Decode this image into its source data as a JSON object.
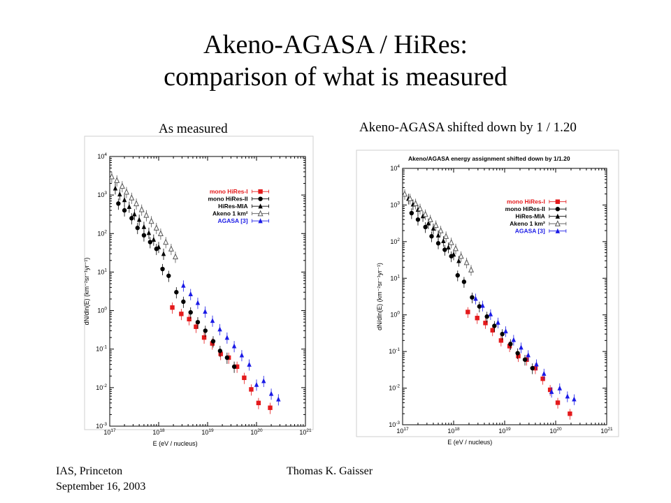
{
  "slide": {
    "title_line1": "Akeno-AGASA / HiRes:",
    "title_line2": "comparison of what is measured",
    "left_caption": "As measured",
    "right_caption": "Akeno-AGASA shifted down by 1 / 1.20",
    "footer_left_line1": "IAS, Princeton",
    "footer_left_line2": "September 16, 2003",
    "footer_author": "Thomas K. Gaisser"
  },
  "chart_data": [
    {
      "type": "scatter",
      "title": "",
      "xlabel": "E   (eV / nucleus)",
      "ylabel": "dN/dln(E)  (km⁻²sr⁻¹yr⁻¹)",
      "x_scale": "log",
      "y_scale": "log",
      "xlim": [
        1e+17,
        1e+21
      ],
      "ylim": [
        0.001,
        10000
      ],
      "x_ticks": [
        "10^17",
        "10^18",
        "10^19",
        "10^20",
        "10^21"
      ],
      "y_ticks": [
        "10^-3",
        "10^-2",
        "10^-1",
        "10^0",
        "10^1",
        "10^2",
        "10^3",
        "10^4"
      ],
      "legend_position": "top-right",
      "series": [
        {
          "name": "mono HiRes-I",
          "color": "#e41a1c",
          "marker": "square",
          "points": [
            [
              1.9e+18,
              1.2
            ],
            [
              2.9e+18,
              0.82
            ],
            [
              4.2e+18,
              0.6
            ],
            [
              5.8e+18,
              0.38
            ],
            [
              8.5e+18,
              0.2
            ],
            [
              1.25e+19,
              0.14
            ],
            [
              1.85e+19,
              0.075
            ],
            [
              2.7e+19,
              0.06
            ],
            [
              4e+19,
              0.035
            ],
            [
              5.6e+19,
              0.018
            ],
            [
              7.8e+19,
              0.009
            ],
            [
              1.1e+20,
              0.004
            ],
            [
              1.9e+20,
              0.003
            ]
          ]
        },
        {
          "name": "mono HiRes-II",
          "color": "#000000",
          "marker": "circle",
          "points": [
            [
              1.5e+17,
              600
            ],
            [
              2e+17,
              400
            ],
            [
              2.8e+17,
              250
            ],
            [
              3.7e+17,
              140
            ],
            [
              5e+17,
              90
            ],
            [
              6.7e+17,
              60
            ],
            [
              9e+17,
              40
            ],
            [
              1.2e+18,
              12
            ],
            [
              1.6e+18,
              8
            ],
            [
              2.3e+18,
              3.0
            ],
            [
              3.2e+18,
              1.7
            ],
            [
              4.5e+18,
              0.9
            ],
            [
              6.3e+18,
              0.5
            ],
            [
              9e+18,
              0.3
            ],
            [
              1.3e+19,
              0.16
            ],
            [
              1.8e+19,
              0.09
            ],
            [
              2.5e+19,
              0.06
            ],
            [
              3.5e+19,
              0.035
            ]
          ]
        },
        {
          "name": "HiRes-MIA",
          "color": "#000000",
          "marker": "triangle",
          "points": [
            [
              1.3e+17,
              1500
            ],
            [
              1.6e+17,
              1050
            ],
            [
              2e+17,
              750
            ],
            [
              2.5e+17,
              500
            ],
            [
              3.2e+17,
              320
            ],
            [
              4e+17,
              230
            ],
            [
              5e+17,
              150
            ],
            [
              6.3e+17,
              105
            ],
            [
              7.9e+17,
              70
            ],
            [
              1e+18,
              45
            ],
            [
              1.26e+18,
              30
            ]
          ]
        },
        {
          "name": "Akeno 1 km²",
          "color": "#555555",
          "marker": "triangle-open",
          "points": [
            [
              1.1e+17,
              3000
            ],
            [
              1.4e+17,
              2400
            ],
            [
              1.8e+17,
              1700
            ],
            [
              2.2e+17,
              1200
            ],
            [
              2.8e+17,
              850
            ],
            [
              3.5e+17,
              600
            ],
            [
              4.5e+17,
              420
            ],
            [
              5.6e+17,
              300
            ],
            [
              7.1e+17,
              210
            ],
            [
              9e+17,
              140
            ],
            [
              1.1e+18,
              100
            ],
            [
              1.4e+18,
              60
            ],
            [
              1.8e+18,
              40
            ],
            [
              2.2e+18,
              25
            ]
          ]
        },
        {
          "name": "AGASA [3]",
          "color": "#1a1ae6",
          "marker": "triangle",
          "points": [
            [
              3.2e+18,
              4.5
            ],
            [
              4.5e+18,
              2.7
            ],
            [
              6.3e+18,
              1.6
            ],
            [
              8.9e+18,
              0.95
            ],
            [
              1.26e+19,
              0.55
            ],
            [
              1.78e+19,
              0.33
            ],
            [
              2.5e+19,
              0.2
            ],
            [
              3.5e+19,
              0.12
            ],
            [
              5e+19,
              0.07
            ],
            [
              7.1e+19,
              0.04
            ],
            [
              1e+20,
              0.012
            ],
            [
              1.4e+20,
              0.015
            ],
            [
              2e+20,
              0.007
            ],
            [
              2.8e+20,
              0.005
            ]
          ]
        }
      ]
    },
    {
      "type": "scatter",
      "title": "Akeno/AGASA energy assignment shifted down by 1/1.20",
      "xlabel": "E   (eV / nucleus)",
      "ylabel": "dN/dln(E)  (km⁻²sr⁻¹yr⁻¹)",
      "x_scale": "log",
      "y_scale": "log",
      "xlim": [
        1e+17,
        1e+21
      ],
      "ylim": [
        0.001,
        10000
      ],
      "x_ticks": [
        "10^17",
        "10^18",
        "10^19",
        "10^20",
        "10^21"
      ],
      "y_ticks": [
        "10^-3",
        "10^-2",
        "10^-1",
        "10^0",
        "10^1",
        "10^2",
        "10^3",
        "10^4"
      ],
      "legend_position": "top-right",
      "series": [
        {
          "name": "mono HiRes-I",
          "color": "#e41a1c",
          "marker": "square",
          "points": [
            [
              1.9e+18,
              1.2
            ],
            [
              2.9e+18,
              0.82
            ],
            [
              4.2e+18,
              0.6
            ],
            [
              5.8e+18,
              0.38
            ],
            [
              8.5e+18,
              0.2
            ],
            [
              1.25e+19,
              0.14
            ],
            [
              1.85e+19,
              0.075
            ],
            [
              2.7e+19,
              0.06
            ],
            [
              4e+19,
              0.035
            ],
            [
              5.6e+19,
              0.018
            ],
            [
              7.8e+19,
              0.009
            ],
            [
              1.1e+20,
              0.004
            ],
            [
              1.9e+20,
              0.002
            ]
          ]
        },
        {
          "name": "mono HiRes-II",
          "color": "#000000",
          "marker": "circle",
          "points": [
            [
              1.5e+17,
              600
            ],
            [
              2e+17,
              400
            ],
            [
              2.8e+17,
              250
            ],
            [
              3.7e+17,
              140
            ],
            [
              5e+17,
              90
            ],
            [
              6.7e+17,
              60
            ],
            [
              9e+17,
              40
            ],
            [
              1.2e+18,
              12
            ],
            [
              1.6e+18,
              8
            ],
            [
              2.3e+18,
              3.0
            ],
            [
              3.2e+18,
              1.7
            ],
            [
              4.5e+18,
              0.9
            ],
            [
              6.3e+18,
              0.5
            ],
            [
              9e+18,
              0.3
            ],
            [
              1.3e+19,
              0.16
            ],
            [
              1.8e+19,
              0.09
            ],
            [
              2.5e+19,
              0.06
            ],
            [
              3.5e+19,
              0.035
            ]
          ]
        },
        {
          "name": "HiRes-MIA",
          "color": "#000000",
          "marker": "triangle",
          "points": [
            [
              1.3e+17,
              1500
            ],
            [
              1.6e+17,
              1050
            ],
            [
              2e+17,
              750
            ],
            [
              2.5e+17,
              500
            ],
            [
              3.2e+17,
              320
            ],
            [
              4e+17,
              230
            ],
            [
              5e+17,
              150
            ],
            [
              6.3e+17,
              105
            ],
            [
              7.9e+17,
              70
            ],
            [
              1e+18,
              45
            ],
            [
              1.26e+18,
              30
            ]
          ]
        },
        {
          "name": "Akeno 1 km²",
          "color": "#555555",
          "marker": "triangle-open",
          "points": [
            [
              1.1e+17,
              2000
            ],
            [
              1.4e+17,
              1500
            ],
            [
              1.8e+17,
              1100
            ],
            [
              2.2e+17,
              800
            ],
            [
              2.8e+17,
              560
            ],
            [
              3.5e+17,
              400
            ],
            [
              4.5e+17,
              280
            ],
            [
              5.6e+17,
              200
            ],
            [
              7.1e+17,
              140
            ],
            [
              9e+17,
              95
            ],
            [
              1.1e+18,
              65
            ],
            [
              1.4e+18,
              40
            ],
            [
              1.8e+18,
              27
            ],
            [
              2.2e+18,
              17
            ]
          ]
        },
        {
          "name": "AGASA [3]",
          "color": "#1a1ae6",
          "marker": "triangle",
          "points": [
            [
              2.7e+18,
              2.8
            ],
            [
              3.7e+18,
              1.8
            ],
            [
              5.3e+18,
              1.05
            ],
            [
              7.4e+18,
              0.62
            ],
            [
              1.05e+19,
              0.36
            ],
            [
              1.5e+19,
              0.21
            ],
            [
              2.1e+19,
              0.13
            ],
            [
              2.9e+19,
              0.08
            ],
            [
              4.2e+19,
              0.045
            ],
            [
              5.9e+19,
              0.025
            ],
            [
              8.3e+19,
              0.008
            ],
            [
              1.2e+20,
              0.01
            ],
            [
              1.7e+20,
              0.006
            ],
            [
              2.3e+20,
              0.005
            ]
          ]
        }
      ]
    }
  ]
}
